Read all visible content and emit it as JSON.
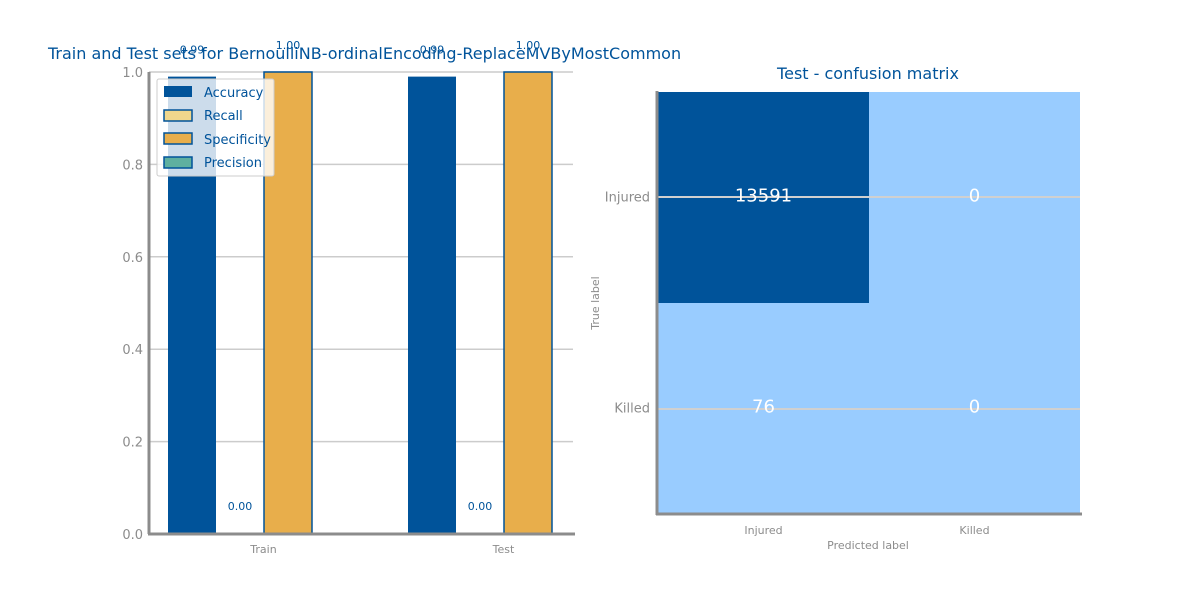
{
  "colors": {
    "accuracy": "#00539a",
    "recall": "#f0d78c",
    "specificity": "#e8ae4b",
    "precision": "#5fb0a0",
    "cm_high": "#00539a",
    "cm_low": "#99ccff"
  },
  "chart_data": [
    {
      "type": "bar",
      "title": "Train and Test sets for BernoulliNB-ordinalEncoding-ReplaceMVByMostCommon",
      "categories": [
        "Train",
        "Test"
      ],
      "series": [
        {
          "name": "Accuracy",
          "values": [
            0.99,
            0.99
          ],
          "labels": [
            "0.99",
            "0.99"
          ]
        },
        {
          "name": "Recall",
          "values": [
            0.0,
            0.0
          ],
          "labels": [
            "0.00",
            "0.00"
          ]
        },
        {
          "name": "Specificity",
          "values": [
            1.0,
            1.0
          ],
          "labels": [
            "1.00",
            "1.00"
          ]
        },
        {
          "name": "Precision",
          "values": [
            0.0,
            0.0
          ],
          "labels": [
            "",
            ""
          ]
        }
      ],
      "ylim": [
        0,
        1
      ],
      "yticks": [
        "0.0",
        "0.2",
        "0.4",
        "0.6",
        "0.8",
        "1.0"
      ],
      "legend": "top-left",
      "grid": true
    },
    {
      "type": "heatmap",
      "title": "Test - confusion matrix",
      "xlabel": "Predicted label",
      "ylabel": "True label",
      "x_categories": [
        "Injured",
        "Killed"
      ],
      "y_categories": [
        "Injured",
        "Killed"
      ],
      "values": [
        [
          13591,
          0
        ],
        [
          76,
          0
        ]
      ],
      "value_labels": [
        [
          "13591",
          "0"
        ],
        [
          "76",
          "0"
        ]
      ]
    }
  ]
}
